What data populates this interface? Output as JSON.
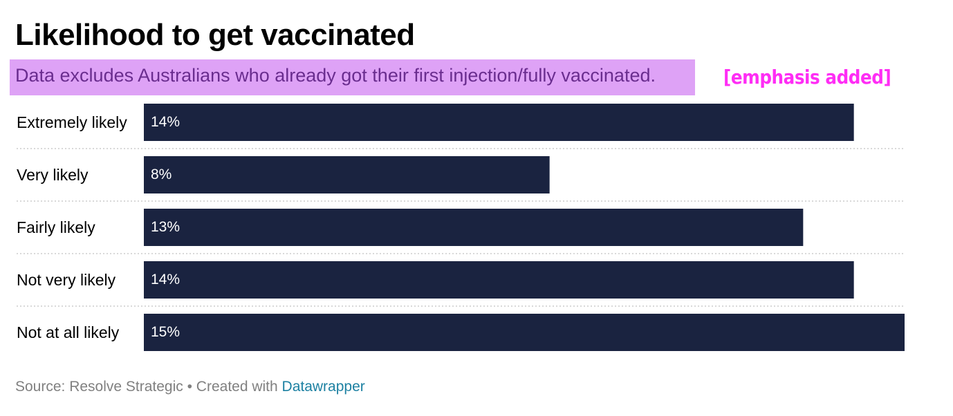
{
  "colors": {
    "bar": "#1a2340",
    "bar_label": "#ffffff",
    "highlight_bg": "#dea2f6",
    "highlight_text": "#6a2d8f",
    "emphasis": "#ff2df5",
    "footer_text": "#808080",
    "link": "#1d81a2",
    "divider": "#cccccc"
  },
  "header": {
    "title": "Likelihood to get vaccinated",
    "subtitle": "Data excludes Australians who already got their first injection/fully vaccinated.",
    "annotation": "[emphasis added]"
  },
  "footer": {
    "source": "Source: Resolve Strategic • Created with ",
    "link_text": "Datawrapper"
  },
  "chart_data": {
    "type": "bar",
    "orientation": "horizontal",
    "categories": [
      "Extremely likely",
      "Very likely",
      "Fairly likely",
      "Not very likely",
      "Not at all likely"
    ],
    "values": [
      14,
      8,
      13,
      14,
      15
    ],
    "value_labels": [
      "14%",
      "8%",
      "13%",
      "14%",
      "15%"
    ],
    "xlim": [
      0,
      15
    ],
    "grid": false
  }
}
